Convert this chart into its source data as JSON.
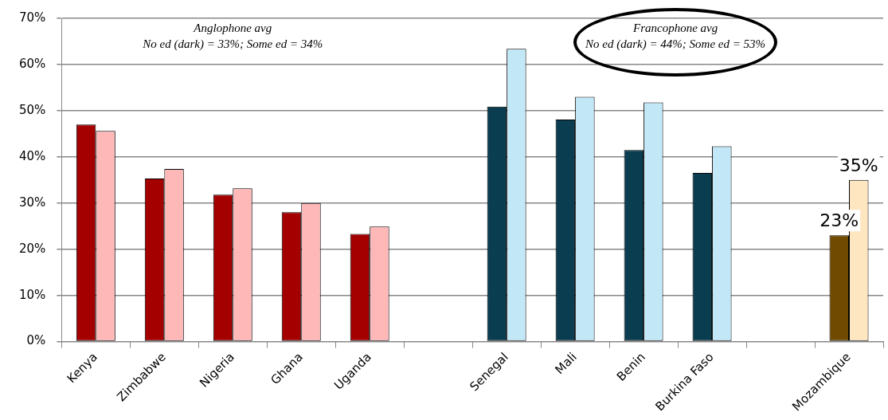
{
  "chart_data": {
    "type": "bar",
    "categories": [
      "Kenya",
      "Zimbabwe",
      "Nigeria",
      "Ghana",
      "Uganda",
      null,
      "Senegal",
      "Mali",
      "Benin",
      "Burkina Faso",
      null,
      "Mozambique"
    ],
    "series": [
      {
        "colors": [
          "#a50000",
          "#a50000",
          "#a50000",
          "#a50000",
          "#a50000",
          null,
          "#0a3d50",
          "#0a3d50",
          "#0a3d50",
          "#0a3d50",
          null,
          "#6f4a00"
        ],
        "values": [
          47.0,
          35.3,
          31.8,
          28.0,
          23.3,
          null,
          50.9,
          48.1,
          41.5,
          36.5,
          null,
          23
        ],
        "value_labels": [
          null,
          null,
          null,
          null,
          null,
          null,
          null,
          null,
          null,
          null,
          null,
          "23%"
        ]
      },
      {
        "colors": [
          "#ffb8b8",
          "#ffb8b8",
          "#ffb8b8",
          "#ffb8b8",
          "#ffb8b8",
          null,
          "#c2e8f7",
          "#c2e8f7",
          "#c2e8f7",
          "#c2e8f7",
          null,
          "#fee6c0"
        ],
        "values": [
          45.6,
          37.4,
          33.2,
          30.0,
          24.9,
          null,
          63.4,
          53.0,
          51.8,
          42.3,
          null,
          35
        ],
        "value_labels": [
          null,
          null,
          null,
          null,
          null,
          null,
          null,
          null,
          null,
          null,
          null,
          "35%"
        ]
      }
    ],
    "ylim": [
      0,
      70
    ],
    "yticks": [
      {
        "value": 0,
        "label": "0%"
      },
      {
        "value": 10,
        "label": "10%"
      },
      {
        "value": 20,
        "label": "20%"
      },
      {
        "value": 30,
        "label": "30%"
      },
      {
        "value": 40,
        "label": "40%"
      },
      {
        "value": 50,
        "label": "50%"
      },
      {
        "value": 60,
        "label": "60%"
      },
      {
        "value": 70,
        "label": "70%"
      }
    ],
    "grid": "y",
    "legend": false,
    "annotations": [
      "Anglophone avg\nNo ed (dark) = 33%; Some ed = 34%",
      "Francophone avg\nNo ed (dark) = 44%; Some ed = 53%"
    ]
  }
}
